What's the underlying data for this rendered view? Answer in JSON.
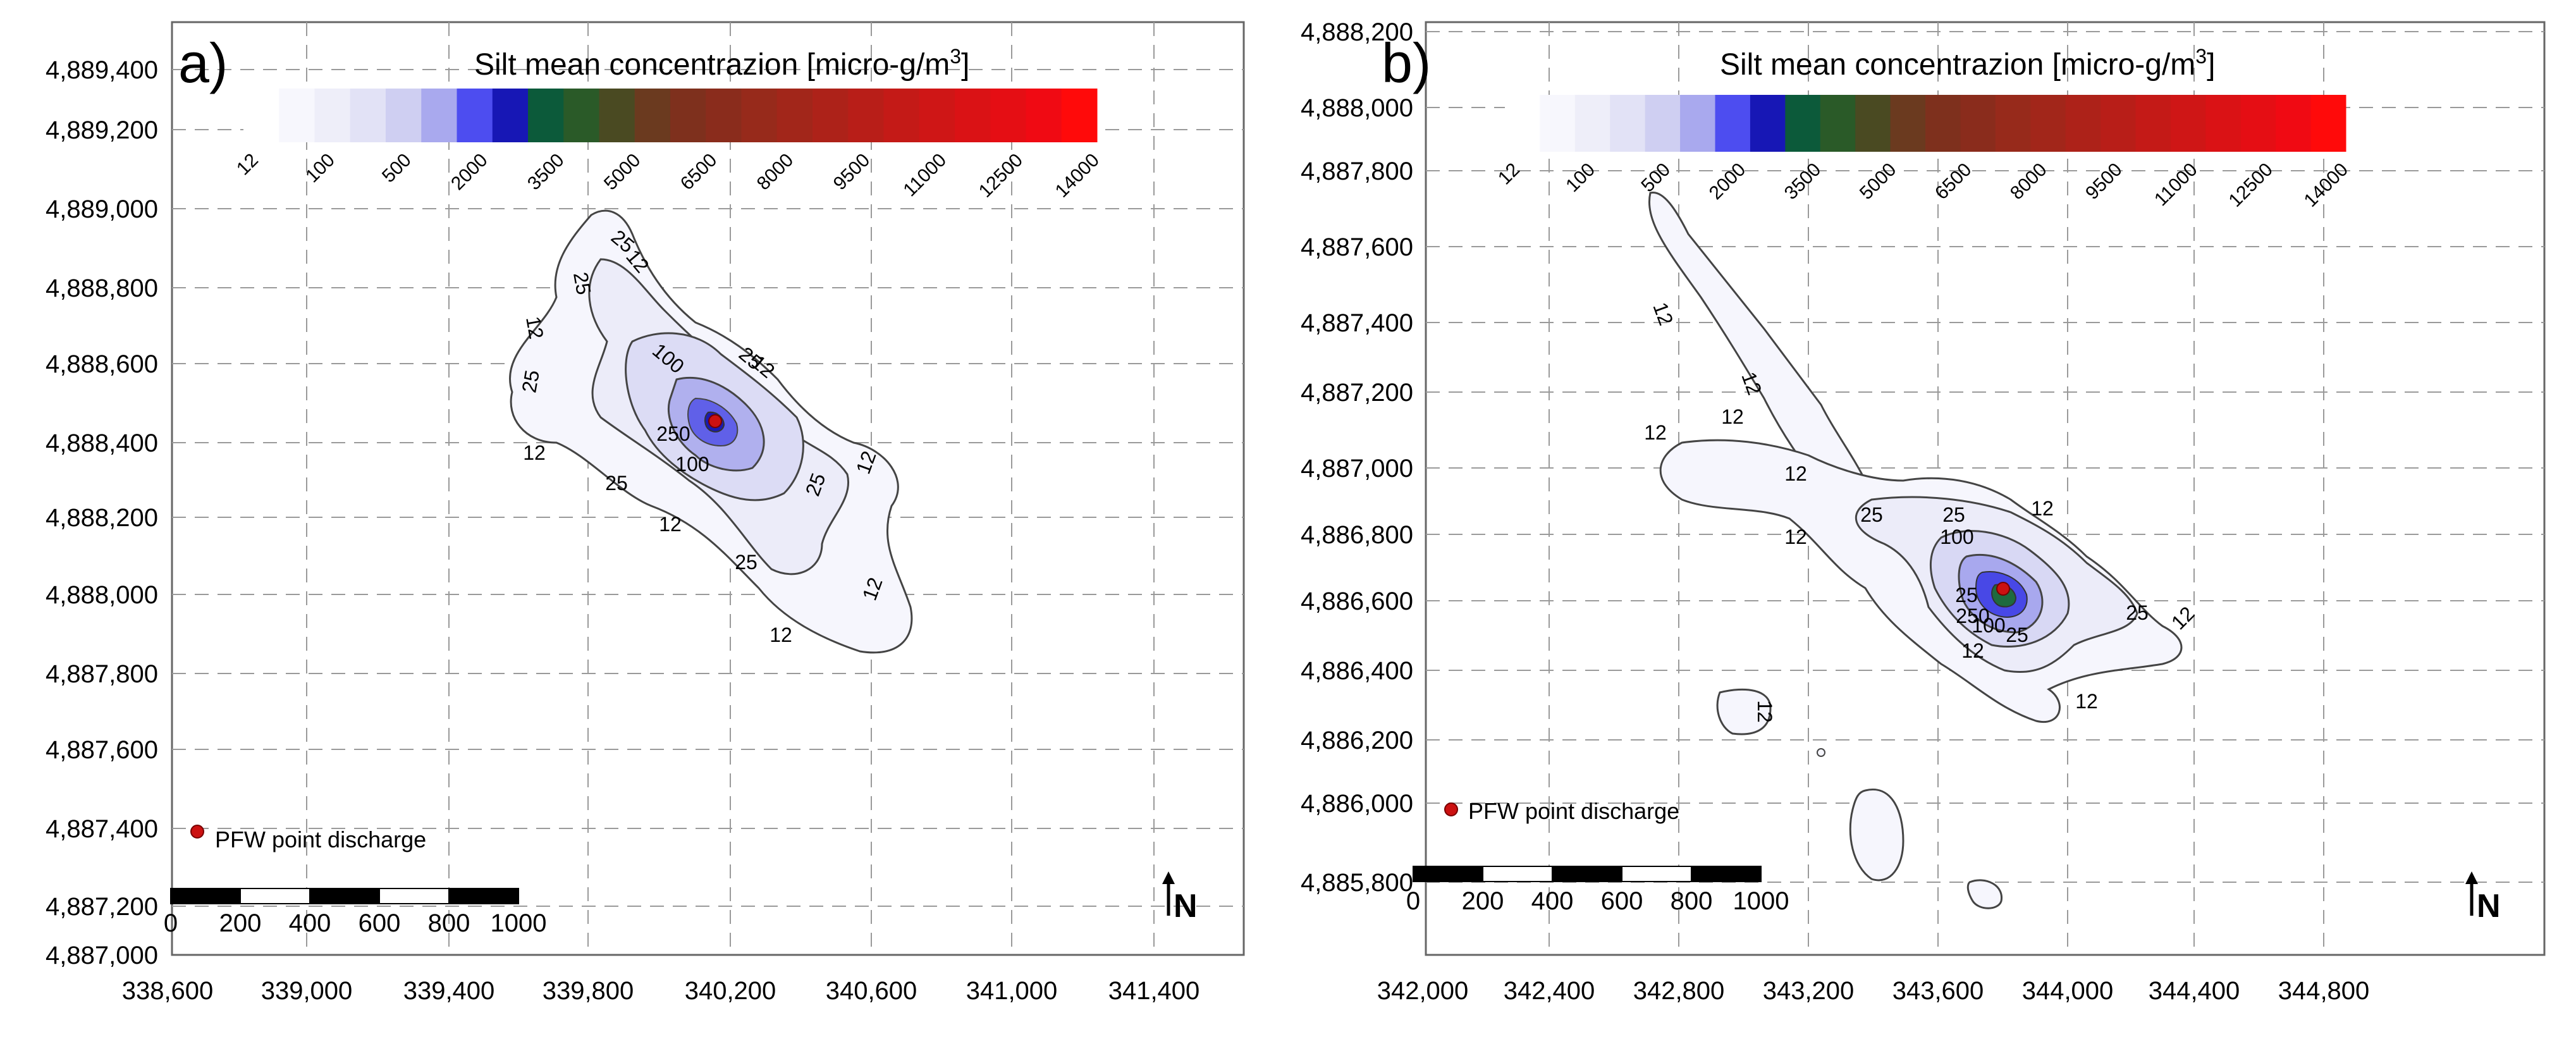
{
  "figure": {
    "panels": [
      {
        "id": "a",
        "label": "a)",
        "colorbar_title": "Silt mean concentrazion [micro-g/m",
        "colorbar_title_sup": "3",
        "colorbar_title_end": "]",
        "colorbar_ticks": [
          "12",
          "100",
          "500",
          "2000",
          "3500",
          "5000",
          "6500",
          "8000",
          "9500",
          "11000",
          "12500",
          "14000"
        ],
        "x_ticks": [
          "338,600",
          "339,000",
          "339,400",
          "339,800",
          "340,200",
          "340,600",
          "341,000",
          "341,400"
        ],
        "y_ticks": [
          "4,889,400",
          "4,889,200",
          "4,889,000",
          "4,888,800",
          "4,888,600",
          "4,888,400",
          "4,888,200",
          "4,888,000",
          "4,887,800",
          "4,887,600",
          "4,887,400",
          "4,887,200",
          "4,887,000"
        ],
        "legend_label": "PFW point discharge",
        "scale_labels": [
          "0",
          "200",
          "400",
          "600",
          "800",
          "1000"
        ],
        "north_label": "N",
        "contour_labels": [
          "12",
          "25",
          "100",
          "250"
        ]
      },
      {
        "id": "b",
        "label": "b)",
        "colorbar_title": "Silt mean concentrazion [micro-g/m",
        "colorbar_title_sup": "3",
        "colorbar_title_end": "]",
        "colorbar_ticks": [
          "12",
          "100",
          "500",
          "2000",
          "3500",
          "5000",
          "6500",
          "8000",
          "9500",
          "11000",
          "12500",
          "14000"
        ],
        "x_ticks": [
          "342,000",
          "342,400",
          "342,800",
          "343,200",
          "343,600",
          "344,000",
          "344,400",
          "344,800"
        ],
        "y_ticks": [
          "4,888,200",
          "4,888,000",
          "4,887,800",
          "4,887,600",
          "4,887,400",
          "4,887,200",
          "4,887,000",
          "4,886,800",
          "4,886,600",
          "4,886,400",
          "4,886,200",
          "4,886,000",
          "4,885,800"
        ],
        "legend_label": "PFW point discharge",
        "scale_labels": [
          "0",
          "200",
          "400",
          "600",
          "800",
          "1000"
        ],
        "north_label": "N",
        "contour_labels": [
          "12",
          "25",
          "100",
          "250"
        ]
      }
    ],
    "colors": {
      "discharge_point": "#cc1111",
      "grid": "#9a9a9a",
      "contour": "#333333",
      "colorbar": [
        "#ffffff",
        "#f7f7fd",
        "#eeeef9",
        "#e2e2f6",
        "#cfcff2",
        "#a9a9ee",
        "#4d4df0",
        "#1717b5",
        "#0c5a3a",
        "#2a5a28",
        "#4a4a22",
        "#6b3a1f",
        "#7e301d",
        "#8a2c1c",
        "#972a1b",
        "#a2261a",
        "#ad2219",
        "#b81e18",
        "#c41a17",
        "#cf1616",
        "#da1215",
        "#e50e14",
        "#f00a13",
        "#ff0a0a"
      ]
    }
  }
}
